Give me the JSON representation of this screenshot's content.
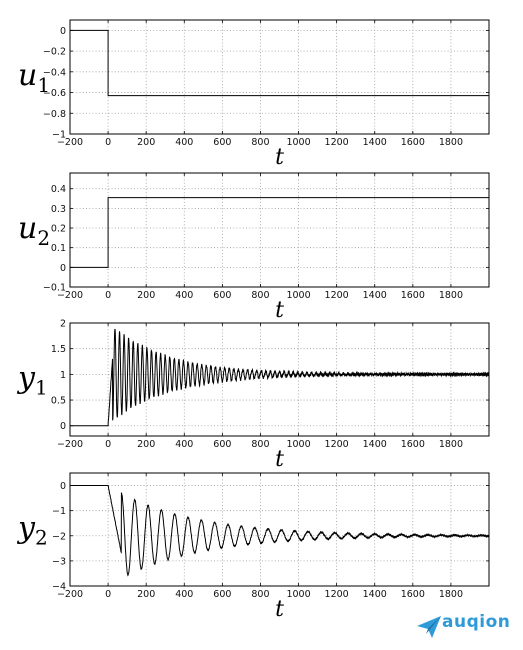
{
  "chart_data": [
    {
      "type": "line",
      "ylabel": "u",
      "ylabel_sub": "1",
      "xlabel": "t",
      "xlim": [
        -200,
        2000
      ],
      "ylim": [
        -1,
        0.1
      ],
      "grid": true,
      "xticks": [
        -200,
        0,
        200,
        400,
        600,
        800,
        1000,
        1200,
        1400,
        1600,
        1800
      ],
      "yticks": [
        0,
        -0.2,
        -0.4,
        -0.6,
        -0.8,
        -1
      ],
      "ytick_labels": [
        "0",
        "−0.2",
        "−0.4",
        "−0.6",
        "−0.8",
        "−1"
      ],
      "series": [
        {
          "kind": "step",
          "x": [
            -200,
            0,
            0,
            2000
          ],
          "y": [
            0,
            0,
            -0.63,
            -0.63
          ]
        }
      ]
    },
    {
      "type": "line",
      "ylabel": "u",
      "ylabel_sub": "2",
      "xlabel": "t",
      "xlim": [
        -200,
        2000
      ],
      "ylim": [
        -0.1,
        0.48
      ],
      "grid": true,
      "xticks": [
        -200,
        0,
        200,
        400,
        600,
        800,
        1000,
        1200,
        1400,
        1600,
        1800
      ],
      "yticks": [
        0.4,
        0.3,
        0.2,
        0.1,
        0,
        -0.1
      ],
      "ytick_labels": [
        "0.4",
        "0.3",
        "0.2",
        "0.1",
        "0",
        "−0.1"
      ],
      "series": [
        {
          "kind": "step",
          "x": [
            -200,
            0,
            0,
            2000
          ],
          "y": [
            0,
            0,
            0.355,
            0.355
          ]
        }
      ]
    },
    {
      "type": "line",
      "ylabel": "y",
      "ylabel_sub": "1",
      "xlabel": "t",
      "xlim": [
        -200,
        2000
      ],
      "ylim": [
        -0.2,
        2
      ],
      "grid": true,
      "xticks": [
        -200,
        0,
        200,
        400,
        600,
        800,
        1000,
        1200,
        1400,
        1600,
        1800
      ],
      "yticks": [
        2,
        1.5,
        1,
        0.5,
        0
      ],
      "ytick_labels": [
        "2",
        "1.5",
        "1",
        "0.5",
        "0"
      ],
      "series": [
        {
          "kind": "oscillation",
          "initial": 0,
          "final": 1.0,
          "amplitude": 0.5,
          "decay_time": 300,
          "period": 24,
          "start": 0,
          "wiggle": 0.018
        }
      ]
    },
    {
      "type": "line",
      "ylabel": "y",
      "ylabel_sub": "2",
      "xlabel": "t",
      "xlim": [
        -200,
        2000
      ],
      "ylim": [
        -4,
        0.5
      ],
      "grid": true,
      "xticks": [
        -200,
        0,
        200,
        400,
        600,
        800,
        1000,
        1200,
        1400,
        1600,
        1800
      ],
      "yticks": [
        0,
        -1,
        -2,
        -3,
        -4
      ],
      "ytick_labels": [
        "0",
        "−1",
        "−2",
        "−3",
        "−4"
      ],
      "series": [
        {
          "kind": "oscillation",
          "initial": 0,
          "final": -2.0,
          "amplitude": 1.4,
          "decay_time": 420,
          "period": 70,
          "start": 0,
          "wiggle": 0.02
        }
      ]
    }
  ],
  "watermark": {
    "text": "auqion"
  }
}
